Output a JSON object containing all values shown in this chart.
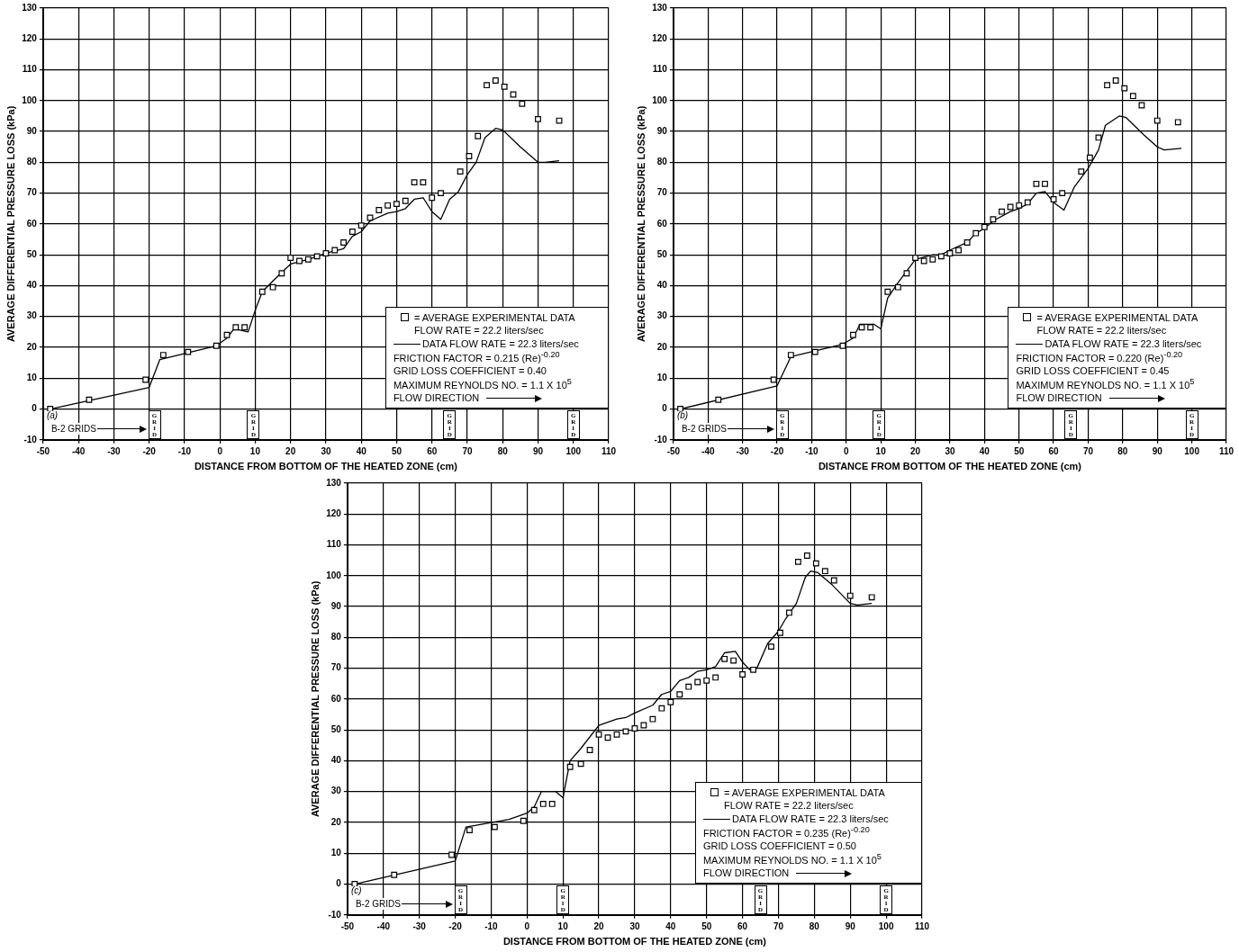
{
  "chart_data": [
    {
      "type": "scatter",
      "xlabel": "DISTANCE FROM BOTTOM OF THE HEATED ZONE (cm)",
      "ylabel": "AVERAGE DIFFERENTIAL PRESSURE LOSS (kPa)",
      "xlim": [
        -50,
        110
      ],
      "xticks": [
        -50,
        -40,
        -30,
        -20,
        -10,
        0,
        10,
        20,
        30,
        40,
        50,
        60,
        70,
        80,
        90,
        100,
        110
      ],
      "ylim": [
        -10,
        130
      ],
      "yticks": [
        -10,
        0,
        10,
        20,
        30,
        40,
        50,
        60,
        70,
        80,
        90,
        100,
        110,
        120,
        130
      ],
      "grid": true,
      "legend": "bottom right",
      "series": [
        {
          "name": "= AVERAGE EXPERIMENTAL DATA FLOW RATE = 22.2 liters/sec",
          "marker": "square",
          "color": "#000000",
          "x": [
            -48,
            -37,
            -21,
            -16,
            -9,
            -1,
            2,
            4.5,
            7,
            12,
            15,
            17.5,
            20,
            22.5,
            25,
            27.5,
            30,
            32.5,
            35,
            37.5,
            40,
            42.5,
            45,
            47.5,
            50,
            52.5,
            55,
            57.5,
            60,
            62.5,
            68,
            70.5,
            73,
            75.5,
            78,
            80.5,
            83,
            85.5,
            90,
            96
          ],
          "values": [
            0,
            3,
            9.5,
            17.5,
            18.5,
            20.5,
            24,
            26.5,
            26.5,
            38,
            39.5,
            44,
            49,
            48,
            48.5,
            49.5,
            50.5,
            51.5,
            54,
            57.5,
            59.5,
            62,
            64.5,
            66,
            66.5,
            67.5,
            73.5,
            73.5,
            68.5,
            70,
            77,
            82,
            88.5,
            105,
            106.5,
            104.5,
            102,
            99,
            94,
            93.5
          ]
        },
        {
          "name": "DATA FLOW RATE = 22.3 liters/sec",
          "type": "line",
          "marker": "none",
          "color": "#000000",
          "x": [
            -48,
            -20,
            -17,
            -1,
            2,
            4,
            8,
            10,
            12,
            15,
            20,
            25,
            30,
            35,
            37.5,
            40,
            42.5,
            47.5,
            50,
            52.5,
            55,
            57.5,
            60,
            62.5,
            65,
            67.5,
            70,
            72.5,
            75,
            78,
            80,
            85,
            90,
            92,
            96
          ],
          "values": [
            0,
            7,
            16,
            20.5,
            23,
            26,
            25,
            32,
            38,
            41.5,
            47,
            48.5,
            50.5,
            52,
            56,
            57.5,
            61,
            63.5,
            64,
            65,
            68,
            68.5,
            64,
            61.5,
            68,
            70.5,
            76,
            80,
            88,
            91,
            90.5,
            85,
            80,
            80,
            80.5
          ]
        }
      ],
      "annotations": [
        "(a)",
        "B-2 GRIDS",
        "FRICTION FACTOR = 0.215 (Re)$^{-0.20}$",
        "GRID LOSS COEFFICIENT = 0.40",
        "MAXIMUM REYNOLDS NO. =  1.1 X 10$^{5}$",
        "FLOW DIRECTION",
        {
          "text": "GRID",
          "x": -18.5,
          "y": -5
        },
        {
          "text": "GRID",
          "x": 9.5,
          "y": -5
        },
        {
          "text": "GRID",
          "x": 65,
          "y": -5
        },
        {
          "text": "GRID",
          "x": 100,
          "y": -5
        }
      ]
    },
    {
      "type": "scatter",
      "xlabel": "DISTANCE FROM BOTTOM OF THE HEATED ZONE (cm)",
      "ylabel": "AVERAGE DIFFERENTIAL PRESSURE LOSS (kPa)",
      "xlim": [
        -50,
        110
      ],
      "xticks": [
        -50,
        -40,
        -30,
        -20,
        -10,
        0,
        10,
        20,
        30,
        40,
        50,
        60,
        70,
        80,
        90,
        100,
        110
      ],
      "ylim": [
        -10,
        130
      ],
      "yticks": [
        -10,
        0,
        10,
        20,
        30,
        40,
        50,
        60,
        70,
        80,
        90,
        100,
        110,
        120,
        130
      ],
      "grid": true,
      "legend": "bottom right",
      "series": [
        {
          "name": "= AVERAGE EXPERIMENTAL DATA FLOW RATE = 22.2 liters/sec",
          "marker": "square",
          "color": "#000000",
          "x": [
            -48,
            -37,
            -21,
            -16,
            -9,
            -1,
            2,
            4.5,
            7,
            12,
            15,
            17.5,
            20,
            22.5,
            25,
            27.5,
            30,
            32.5,
            35,
            37.5,
            40,
            42.5,
            45,
            47.5,
            50,
            52.5,
            55,
            57.5,
            60,
            62.5,
            68,
            70.5,
            73,
            75.5,
            78,
            80.5,
            83,
            85.5,
            90,
            96
          ],
          "values": [
            0,
            3,
            9.5,
            17.5,
            18.5,
            20.5,
            24,
            26.5,
            26.5,
            38,
            39.5,
            44,
            49,
            48,
            48.5,
            49.5,
            50.5,
            51.5,
            54,
            57,
            59,
            61.5,
            64,
            65.5,
            66,
            67,
            73,
            73,
            68,
            70,
            77,
            81.5,
            88,
            105,
            106.5,
            104,
            101.5,
            98.5,
            93.5,
            93
          ]
        },
        {
          "name": "DATA FLOW RATE = 22.3 liters/sec",
          "type": "line",
          "marker": "none",
          "color": "#000000",
          "x": [
            -48,
            -20,
            -16,
            -1,
            2,
            4,
            8,
            10,
            12,
            15,
            20,
            25,
            27.5,
            30,
            35,
            37.5,
            40,
            42.5,
            47.5,
            50,
            52.5,
            55,
            57.5,
            60,
            63,
            66,
            70,
            73,
            75,
            79,
            81,
            86,
            90,
            92,
            97
          ],
          "values": [
            0,
            7.5,
            17,
            21,
            23,
            27.5,
            27.5,
            26,
            36,
            41,
            48.5,
            50,
            50,
            51.5,
            54,
            57,
            58.5,
            61,
            64,
            65,
            66.5,
            70,
            70.5,
            67,
            64.5,
            72,
            78,
            84,
            92,
            95,
            94.5,
            89,
            85,
            84,
            84.5
          ]
        }
      ],
      "annotations": [
        "(b)",
        "B-2 GRIDS",
        "FRICTION FACTOR = 0.220 (Re)$^{-0.20}$",
        "GRID LOSS COEFFICIENT = 0.45",
        "MAXIMUM REYNOLDS NO. = 1.1 X 10$^{5}$",
        "FLOW DIRECTION",
        {
          "text": "GRID",
          "x": -18.5,
          "y": -5
        },
        {
          "text": "GRID",
          "x": 9.5,
          "y": -5
        },
        {
          "text": "GRID",
          "x": 65,
          "y": -5
        },
        {
          "text": "GRID",
          "x": 100,
          "y": -5
        }
      ]
    },
    {
      "type": "scatter",
      "xlabel": "DISTANCE FROM BOTTOM OF THE HEATED ZONE (cm)",
      "ylabel": "AVERAGE DIFFERENTIAL PRESSURE LOSS (kPa)",
      "xlim": [
        -50,
        110
      ],
      "xticks": [
        -50,
        -40,
        -30,
        -20,
        -10,
        0,
        10,
        20,
        30,
        40,
        50,
        60,
        70,
        80,
        90,
        100,
        110
      ],
      "ylim": [
        -10,
        130
      ],
      "yticks": [
        -10,
        0,
        10,
        20,
        30,
        40,
        50,
        60,
        70,
        80,
        90,
        100,
        110,
        120,
        130
      ],
      "grid": true,
      "legend": "bottom right",
      "series": [
        {
          "name": "= AVERAGE EXPERIMENTAL DATA FLOW RATE = 22.2 liters/sec",
          "marker": "square",
          "color": "#000000",
          "x": [
            -48,
            -37,
            -21,
            -16,
            -9,
            -1,
            2,
            4.5,
            7,
            12,
            15,
            17.5,
            20,
            22.5,
            25,
            27.5,
            30,
            32.5,
            35,
            37.5,
            40,
            42.5,
            45,
            47.5,
            50,
            52.5,
            55,
            57.5,
            60,
            63,
            68,
            70.5,
            73,
            75.5,
            78,
            80.5,
            83,
            85.5,
            90,
            96
          ],
          "values": [
            0,
            3,
            9.5,
            17.5,
            18.5,
            20.5,
            24,
            26,
            26,
            38,
            39,
            43.5,
            48.5,
            47.5,
            48.5,
            49.5,
            50.5,
            51.5,
            53.5,
            57,
            59,
            61.5,
            64,
            65.5,
            66,
            67,
            73,
            72.5,
            68,
            69.5,
            77,
            81.5,
            88,
            104.5,
            106.5,
            104,
            101.5,
            98.5,
            93.5,
            93
          ]
        },
        {
          "name": "DATA FLOW RATE = 22.3 liters/sec",
          "type": "line",
          "marker": "none",
          "color": "#000000",
          "x": [
            -48,
            -20,
            -17,
            -12,
            -5,
            0,
            2,
            4,
            8,
            10,
            12,
            15,
            20,
            25,
            27.5,
            30,
            35,
            37.5,
            40,
            42.5,
            45,
            47.5,
            50,
            52.5,
            55,
            58,
            60,
            62,
            64,
            67,
            70,
            72,
            75,
            77.5,
            79,
            81,
            85,
            90,
            92,
            96
          ],
          "values": [
            0,
            7.5,
            18.5,
            19.5,
            21,
            23,
            25,
            30,
            30,
            28,
            40,
            44,
            51.5,
            53.5,
            54,
            55.5,
            58,
            61.5,
            62.5,
            66,
            67,
            69,
            69.5,
            70.5,
            75,
            75.5,
            72,
            69.5,
            70,
            78,
            82,
            86,
            91,
            99.5,
            101.5,
            101,
            97,
            91,
            90.5,
            91
          ]
        }
      ],
      "annotations": [
        "(c)",
        "B-2 GRIDS",
        "FRICTION FACTOR = 0.235 (Re)$^{-0.20}$",
        "GRID LOSS COEFFICIENT = 0.50",
        "MAXIMUM REYNOLDS NO. = 1.1 X 10$^{5}$",
        "FLOW DIRECTION",
        {
          "text": "GRID",
          "x": -18.5,
          "y": -5
        },
        {
          "text": "GRID",
          "x": 10,
          "y": -5
        },
        {
          "text": "GRID",
          "x": 65,
          "y": -5
        },
        {
          "text": "GRID",
          "x": 100,
          "y": -5
        }
      ]
    }
  ]
}
